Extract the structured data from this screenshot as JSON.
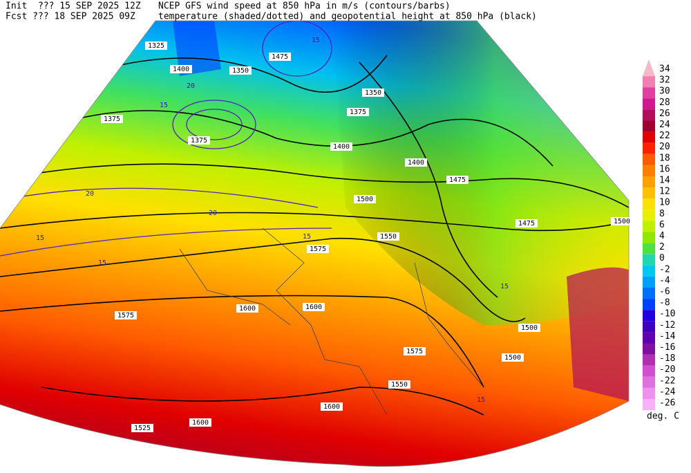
{
  "header": {
    "init": "Init  ??? 15 SEP 2025 12Z",
    "fcst": "Fcst ??? 18 SEP 2025 09Z",
    "line1": "NCEP GFS wind speed at 850 hPa in m/s (contours/barbs)",
    "line2": "temperature (shaded/dotted) and geopotential height at 850 hPa (black)"
  },
  "colorbar": {
    "levels": [
      34,
      32,
      30,
      28,
      26,
      24,
      22,
      20,
      18,
      16,
      14,
      12,
      10,
      8,
      6,
      4,
      2,
      0,
      -2,
      -4,
      -6,
      -8,
      -10,
      -12,
      -14,
      -16,
      -18,
      -20,
      -22,
      -24,
      -26
    ],
    "colors": [
      "#f4b8c8",
      "#f080b0",
      "#e040a0",
      "#d01890",
      "#b0105a",
      "#a00030",
      "#e00000",
      "#ff2000",
      "#ff5a00",
      "#ff8000",
      "#ffa000",
      "#ffc000",
      "#ffe000",
      "#e8f000",
      "#c0f000",
      "#90e800",
      "#50e040",
      "#20d8b0",
      "#00c8f0",
      "#00a0ff",
      "#0070ff",
      "#0040ff",
      "#2000e0",
      "#4000c0",
      "#6000b0",
      "#8010a0",
      "#b030b0",
      "#d050d0",
      "#e070e0",
      "#f090f0",
      "#f8b0f8"
    ],
    "unit": "deg. C"
  },
  "map": {
    "height_labels": [
      1350,
      1400,
      1375,
      1325,
      1375,
      1475,
      1400,
      1400,
      1475,
      1500,
      1550,
      1575,
      1600,
      1600,
      1575,
      1575,
      1550,
      1600,
      1600,
      1525,
      1500,
      1500,
      1475,
      1500,
      1350,
      1375
    ],
    "wind_labels": [
      15,
      20,
      15,
      20,
      15,
      15,
      15,
      15,
      15,
      20
    ]
  }
}
